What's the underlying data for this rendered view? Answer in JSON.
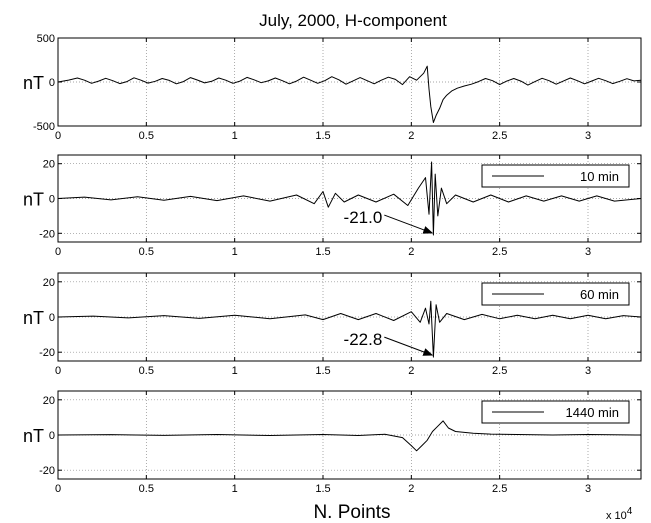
{
  "figure": {
    "title": "July, 2000, H-component",
    "xlabel": "N. Points",
    "x_multiplier": "x 10",
    "x_multiplier_exp": "4"
  },
  "chart_data": [
    {
      "type": "line",
      "ylabel": "nT",
      "xlim": [
        0,
        33000
      ],
      "ylim": [
        -500,
        500
      ],
      "yticks": [
        -500,
        0,
        500
      ],
      "xticks": [
        0,
        5000,
        10000,
        15000,
        20000,
        25000,
        30000
      ],
      "xtick_labels": [
        "0",
        "0.5",
        "1",
        "1.5",
        "2",
        "2.5",
        "3"
      ],
      "grid": true,
      "series": [
        {
          "color": "#000000",
          "points": [
            [
              0,
              0
            ],
            [
              600,
              22
            ],
            [
              1100,
              45
            ],
            [
              1500,
              20
            ],
            [
              1900,
              -15
            ],
            [
              2300,
              10
            ],
            [
              2700,
              42
            ],
            [
              3100,
              15
            ],
            [
              3500,
              -18
            ],
            [
              3900,
              5
            ],
            [
              4300,
              48
            ],
            [
              4700,
              20
            ],
            [
              5100,
              -12
            ],
            [
              5500,
              8
            ],
            [
              5900,
              40
            ],
            [
              6300,
              18
            ],
            [
              6700,
              -20
            ],
            [
              7100,
              5
            ],
            [
              7500,
              50
            ],
            [
              7900,
              22
            ],
            [
              8300,
              -10
            ],
            [
              8700,
              8
            ],
            [
              9100,
              45
            ],
            [
              9500,
              20
            ],
            [
              9900,
              -15
            ],
            [
              10300,
              10
            ],
            [
              10700,
              52
            ],
            [
              11100,
              25
            ],
            [
              11500,
              -8
            ],
            [
              11900,
              12
            ],
            [
              12300,
              45
            ],
            [
              12700,
              15
            ],
            [
              13100,
              -20
            ],
            [
              13500,
              10
            ],
            [
              13900,
              55
            ],
            [
              14300,
              20
            ],
            [
              14700,
              -15
            ],
            [
              15100,
              15
            ],
            [
              15500,
              60
            ],
            [
              15900,
              25
            ],
            [
              16300,
              -25
            ],
            [
              16700,
              12
            ],
            [
              17100,
              50
            ],
            [
              17500,
              15
            ],
            [
              17900,
              -20
            ],
            [
              18300,
              20
            ],
            [
              18700,
              55
            ],
            [
              19100,
              30
            ],
            [
              19500,
              -30
            ],
            [
              19900,
              60
            ],
            [
              20300,
              20
            ],
            [
              20700,
              100
            ],
            [
              20900,
              180
            ],
            [
              21000,
              -80
            ],
            [
              21100,
              -280
            ],
            [
              21250,
              -460
            ],
            [
              21400,
              -380
            ],
            [
              21600,
              -300
            ],
            [
              21800,
              -200
            ],
            [
              22000,
              -150
            ],
            [
              22300,
              -100
            ],
            [
              22600,
              -70
            ],
            [
              23000,
              -45
            ],
            [
              23400,
              -25
            ],
            [
              23800,
              5
            ],
            [
              24200,
              40
            ],
            [
              24600,
              15
            ],
            [
              25000,
              -30
            ],
            [
              25400,
              10
            ],
            [
              25800,
              40
            ],
            [
              26200,
              10
            ],
            [
              26600,
              -35
            ],
            [
              27000,
              5
            ],
            [
              27400,
              42
            ],
            [
              27800,
              15
            ],
            [
              28200,
              -25
            ],
            [
              28600,
              10
            ],
            [
              29000,
              45
            ],
            [
              29400,
              15
            ],
            [
              29800,
              -20
            ],
            [
              30200,
              10
            ],
            [
              30600,
              42
            ],
            [
              31000,
              15
            ],
            [
              31400,
              -18
            ],
            [
              31800,
              8
            ],
            [
              32200,
              38
            ],
            [
              32600,
              12
            ],
            [
              33000,
              20
            ]
          ]
        }
      ]
    },
    {
      "type": "line",
      "ylabel": "nT",
      "xlim": [
        0,
        33000
      ],
      "ylim": [
        -25,
        25
      ],
      "yticks": [
        -20,
        0,
        20
      ],
      "xticks": [
        0,
        5000,
        10000,
        15000,
        20000,
        25000,
        30000
      ],
      "xtick_labels": [
        "0",
        "0.5",
        "1",
        "1.5",
        "2",
        "2.5",
        "3"
      ],
      "grid": true,
      "legend": {
        "label": "10 min",
        "position": "top-right"
      },
      "annotation": {
        "text": "-21.0",
        "x": 21300,
        "y": -21.0
      },
      "series": [
        {
          "name": "10 min",
          "color": "#000000",
          "points": [
            [
              0,
              0
            ],
            [
              1500,
              0.8
            ],
            [
              3000,
              -0.8
            ],
            [
              4500,
              1.0
            ],
            [
              6000,
              -1.0
            ],
            [
              7500,
              1.2
            ],
            [
              9000,
              -1.2
            ],
            [
              10500,
              1.5
            ],
            [
              12000,
              -1.5
            ],
            [
              13500,
              2
            ],
            [
              14500,
              -3
            ],
            [
              15000,
              4
            ],
            [
              15300,
              -5
            ],
            [
              15700,
              3
            ],
            [
              16200,
              -2
            ],
            [
              17000,
              2
            ],
            [
              18000,
              -2
            ],
            [
              19000,
              2.5
            ],
            [
              19800,
              -4
            ],
            [
              20400,
              6
            ],
            [
              20800,
              12
            ],
            [
              21000,
              -9
            ],
            [
              21150,
              21
            ],
            [
              21250,
              -21
            ],
            [
              21350,
              14
            ],
            [
              21500,
              -10
            ],
            [
              21700,
              6
            ],
            [
              22000,
              -3
            ],
            [
              22500,
              2
            ],
            [
              23500,
              -2
            ],
            [
              24500,
              2
            ],
            [
              25500,
              -2
            ],
            [
              26500,
              1.5
            ],
            [
              27500,
              -1.5
            ],
            [
              28500,
              1.5
            ],
            [
              29500,
              -1.5
            ],
            [
              30500,
              1.5
            ],
            [
              31500,
              -1.5
            ],
            [
              33000,
              0
            ]
          ]
        }
      ]
    },
    {
      "type": "line",
      "ylabel": "nT",
      "xlim": [
        0,
        33000
      ],
      "ylim": [
        -25,
        25
      ],
      "yticks": [
        -20,
        0,
        20
      ],
      "xticks": [
        0,
        5000,
        10000,
        15000,
        20000,
        25000,
        30000
      ],
      "xtick_labels": [
        "0",
        "0.5",
        "1",
        "1.5",
        "2",
        "2.5",
        "3"
      ],
      "grid": true,
      "legend": {
        "label": "60 min",
        "position": "top-right"
      },
      "annotation": {
        "text": "-22.8",
        "x": 21300,
        "y": -22.8
      },
      "series": [
        {
          "name": "60 min",
          "color": "#000000",
          "points": [
            [
              0,
              0
            ],
            [
              2000,
              0.5
            ],
            [
              4000,
              -0.5
            ],
            [
              6000,
              0.8
            ],
            [
              8000,
              -0.8
            ],
            [
              10000,
              1
            ],
            [
              12000,
              -1
            ],
            [
              14000,
              1.2
            ],
            [
              15000,
              -1.5
            ],
            [
              16000,
              2
            ],
            [
              17000,
              -1.5
            ],
            [
              18000,
              2
            ],
            [
              19000,
              -2
            ],
            [
              20000,
              3
            ],
            [
              20500,
              -3
            ],
            [
              20800,
              5
            ],
            [
              21000,
              -4
            ],
            [
              21100,
              9
            ],
            [
              21250,
              -22.8
            ],
            [
              21400,
              7
            ],
            [
              21600,
              -3
            ],
            [
              22000,
              2
            ],
            [
              23000,
              -1.5
            ],
            [
              24000,
              1.5
            ],
            [
              25000,
              -1
            ],
            [
              26000,
              1
            ],
            [
              27000,
              -1
            ],
            [
              28000,
              1
            ],
            [
              29000,
              -1
            ],
            [
              30000,
              1
            ],
            [
              31000,
              -1
            ],
            [
              32000,
              0.8
            ],
            [
              33000,
              0
            ]
          ]
        }
      ]
    },
    {
      "type": "line",
      "ylabel": "nT",
      "xlim": [
        0,
        33000
      ],
      "ylim": [
        -25,
        25
      ],
      "yticks": [
        -20,
        0,
        20
      ],
      "xticks": [
        0,
        5000,
        10000,
        15000,
        20000,
        25000,
        30000
      ],
      "xtick_labels": [
        "0",
        "0.5",
        "1",
        "1.5",
        "2",
        "2.5",
        "3"
      ],
      "grid": true,
      "legend": {
        "label": "1440 min",
        "position": "top-right"
      },
      "series": [
        {
          "name": "1440 min",
          "color": "#000000",
          "points": [
            [
              0,
              0
            ],
            [
              3000,
              0.2
            ],
            [
              6000,
              -0.2
            ],
            [
              9000,
              0.3
            ],
            [
              12000,
              -0.3
            ],
            [
              15000,
              0.3
            ],
            [
              17000,
              -0.3
            ],
            [
              18500,
              0.4
            ],
            [
              19500,
              -1.5
            ],
            [
              20000,
              -6
            ],
            [
              20300,
              -9
            ],
            [
              20600,
              -6
            ],
            [
              20900,
              -3
            ],
            [
              21200,
              2
            ],
            [
              21500,
              5
            ],
            [
              21800,
              8
            ],
            [
              22100,
              4
            ],
            [
              22500,
              2
            ],
            [
              23500,
              1
            ],
            [
              24500,
              0.5
            ],
            [
              26000,
              0.3
            ],
            [
              28000,
              0
            ],
            [
              30000,
              0.3
            ],
            [
              33000,
              0
            ]
          ]
        }
      ]
    }
  ]
}
